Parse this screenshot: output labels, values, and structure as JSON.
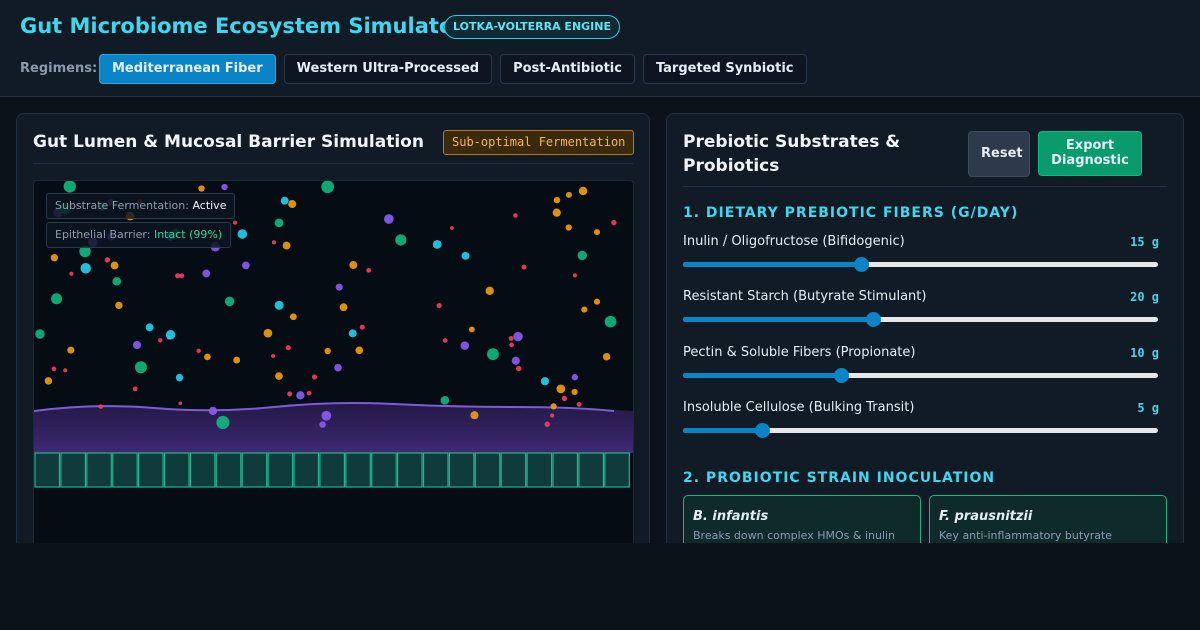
{
  "header": {
    "title": "Gut Microbiome Ecosystem Simulator",
    "badge": "LOTKA-VOLTERRA ENGINE"
  },
  "regimens": {
    "label": "Regimens:",
    "options": [
      "Mediterranean Fiber",
      "Western Ultra-Processed",
      "Post-Antibiotic",
      "Targeted Synbiotic"
    ]
  },
  "simulation": {
    "title": "Gut Lumen & Mucosal Barrier Simulation",
    "status": "Sub-optimal Fermentation",
    "stats": [
      {
        "label": "Substrate Fermentation:",
        "value": "Active"
      },
      {
        "label": "Epithelial Barrier:",
        "value": "Intact (99%)"
      }
    ]
  },
  "controls": {
    "title": "Prebiotic Substrates & Probiotics",
    "buttons": [
      "Reset",
      "Export Diagnostic"
    ],
    "fibers": {
      "heading": "1. DIETARY PREBIOTIC FIBERS (G/DAY)",
      "items": [
        {
          "name": "Inulin / Oligofructose (Bifidogenic)",
          "value": "15 g"
        },
        {
          "name": "Resistant Starch (Butyrate Stimulant)",
          "value": "20 g"
        },
        {
          "name": "Pectin & Soluble Fibers (Propionate)",
          "value": "10 g"
        },
        {
          "name": "Insoluble Cellulose (Bulking Transit)",
          "value": "5 g"
        }
      ]
    },
    "probiotics": {
      "heading": "2. PROBIOTIC STRAIN INOCULATION",
      "strains": [
        {
          "name": "B. infantis",
          "description": "Breaks down complex HMOs & inulin"
        },
        {
          "name": "F. prausnitzii",
          "description": "Key anti-inflammatory butyrate"
        }
      ]
    }
  }
}
